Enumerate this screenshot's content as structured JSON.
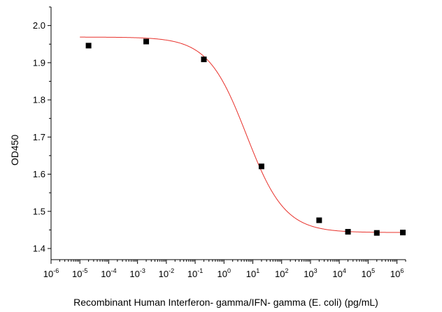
{
  "chart_data": {
    "type": "scatter",
    "xlabel": "Recombinant Human Interferon- gamma/IFN- gamma (E. coli) (pg/mL)",
    "ylabel": "OD450",
    "xscale": "log",
    "xlim": [
      1e-06,
      2000000.0
    ],
    "ylim": [
      1.37,
      2.05
    ],
    "xticks": [
      {
        "base": "10",
        "exp": "-6",
        "value": 1e-06
      },
      {
        "base": "10",
        "exp": "-5",
        "value": 1e-05
      },
      {
        "base": "10",
        "exp": "-4",
        "value": 0.0001
      },
      {
        "base": "10",
        "exp": "-3",
        "value": 0.001
      },
      {
        "base": "10",
        "exp": "-2",
        "value": 0.01
      },
      {
        "base": "10",
        "exp": "-1",
        "value": 0.1
      },
      {
        "base": "10",
        "exp": "0",
        "value": 1
      },
      {
        "base": "10",
        "exp": "1",
        "value": 10
      },
      {
        "base": "10",
        "exp": "2",
        "value": 100
      },
      {
        "base": "10",
        "exp": "3",
        "value": 1000
      },
      {
        "base": "10",
        "exp": "4",
        "value": 10000
      },
      {
        "base": "10",
        "exp": "5",
        "value": 100000
      },
      {
        "base": "10",
        "exp": "6",
        "value": 1000000
      }
    ],
    "yticks": [
      {
        "label": "1.4",
        "value": 1.4
      },
      {
        "label": "1.5",
        "value": 1.5
      },
      {
        "label": "1.6",
        "value": 1.6
      },
      {
        "label": "1.7",
        "value": 1.7
      },
      {
        "label": "1.8",
        "value": 1.8
      },
      {
        "label": "1.9",
        "value": 1.9
      },
      {
        "label": "2.0",
        "value": 2.0
      }
    ],
    "grid": false,
    "legend": "none",
    "series": [
      {
        "kind": "points",
        "marker": "square",
        "color": "#000000",
        "x": [
          2e-05,
          0.002,
          0.2,
          20,
          2000,
          20000,
          200000,
          1600000
        ],
        "y": [
          1.946,
          1.957,
          1.909,
          1.621,
          1.476,
          1.445,
          1.442,
          1.443
        ]
      },
      {
        "kind": "fit-curve",
        "model": "4PL",
        "color": "#e8302a",
        "top": 1.969,
        "bottom": 1.443,
        "ec50": 6.0,
        "hill": 0.65
      }
    ]
  }
}
